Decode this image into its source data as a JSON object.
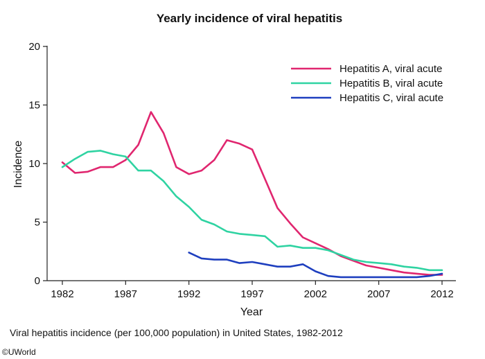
{
  "copyright": "©UWorld",
  "caption": "Viral hepatitis incidence (per 100,000 population) in United States, 1982-2012",
  "chart_data": {
    "type": "line",
    "title": "Yearly incidence of viral hepatitis",
    "xlabel": "Year",
    "ylabel": "Incidence",
    "xlim": [
      1982,
      2012
    ],
    "ylim": [
      0,
      20
    ],
    "xticks": [
      1982,
      1987,
      1992,
      1997,
      2002,
      2007,
      2012
    ],
    "yticks": [
      0,
      5,
      10,
      15,
      20
    ],
    "grid": false,
    "legend_position": "top-right",
    "series": [
      {
        "name": "Hepatitis A, viral acute",
        "color": "#e0266f",
        "x": [
          1982,
          1983,
          1984,
          1985,
          1986,
          1987,
          1988,
          1989,
          1990,
          1991,
          1992,
          1993,
          1994,
          1995,
          1996,
          1997,
          1998,
          1999,
          2000,
          2001,
          2002,
          2003,
          2004,
          2005,
          2006,
          2007,
          2008,
          2009,
          2010,
          2011,
          2012
        ],
        "y": [
          10.1,
          9.2,
          9.3,
          9.7,
          9.7,
          10.3,
          11.6,
          14.4,
          12.6,
          9.7,
          9.1,
          9.4,
          10.3,
          12.0,
          11.7,
          11.2,
          8.7,
          6.2,
          4.9,
          3.7,
          3.2,
          2.7,
          2.1,
          1.7,
          1.3,
          1.1,
          0.9,
          0.7,
          0.6,
          0.5,
          0.5
        ]
      },
      {
        "name": "Hepatitis B, viral acute",
        "color": "#2fd3a2",
        "x": [
          1982,
          1983,
          1984,
          1985,
          1986,
          1987,
          1988,
          1989,
          1990,
          1991,
          1992,
          1993,
          1994,
          1995,
          1996,
          1997,
          1998,
          1999,
          2000,
          2001,
          2002,
          2003,
          2004,
          2005,
          2006,
          2007,
          2008,
          2009,
          2010,
          2011,
          2012
        ],
        "y": [
          9.7,
          10.4,
          11.0,
          11.1,
          10.8,
          10.6,
          9.4,
          9.4,
          8.5,
          7.2,
          6.3,
          5.2,
          4.8,
          4.2,
          4.0,
          3.9,
          3.8,
          2.9,
          3.0,
          2.8,
          2.8,
          2.6,
          2.2,
          1.8,
          1.6,
          1.5,
          1.4,
          1.2,
          1.1,
          0.9,
          0.9
        ]
      },
      {
        "name": "Hepatitis C, viral acute",
        "color": "#1e3fbf",
        "x": [
          1992,
          1993,
          1994,
          1995,
          1996,
          1997,
          1998,
          1999,
          2000,
          2001,
          2002,
          2003,
          2004,
          2005,
          2006,
          2007,
          2008,
          2009,
          2010,
          2011,
          2012
        ],
        "y": [
          2.4,
          1.9,
          1.8,
          1.8,
          1.5,
          1.6,
          1.4,
          1.2,
          1.2,
          1.4,
          0.8,
          0.4,
          0.3,
          0.3,
          0.3,
          0.3,
          0.3,
          0.3,
          0.3,
          0.4,
          0.6
        ]
      }
    ]
  }
}
